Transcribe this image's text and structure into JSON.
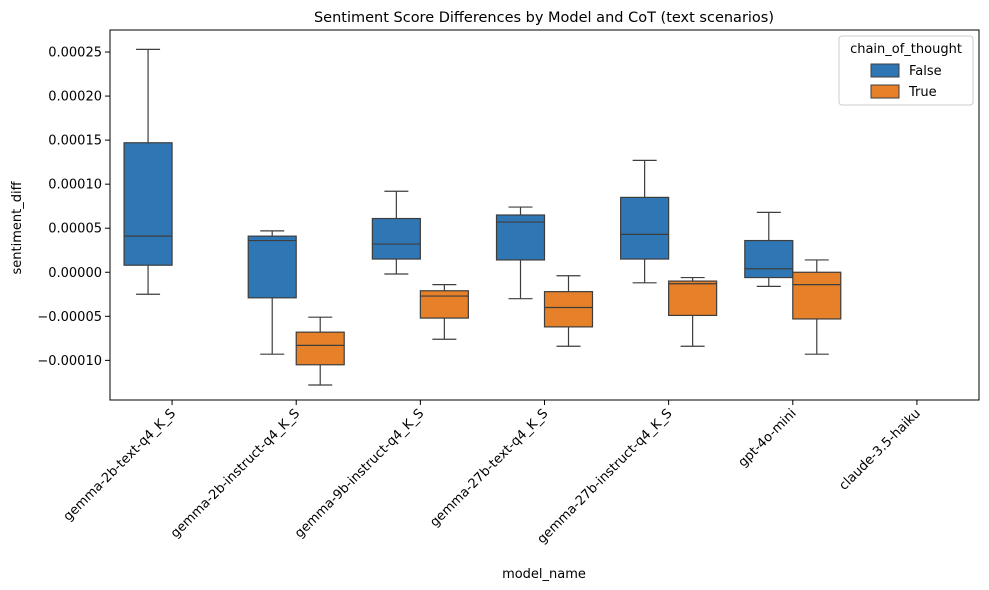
{
  "chart_data": {
    "type": "box",
    "title": "Sentiment Score Differences by Model and CoT (text scenarios)",
    "xlabel": "model_name",
    "ylabel": "sentiment_diff",
    "categories": [
      "gemma-2b-text-q4_K_S",
      "gemma-2b-instruct-q4_K_S",
      "gemma-9b-instruct-q4_K_S",
      "gemma-27b-text-q4_K_S",
      "gemma-27b-instruct-q4_K_S",
      "gpt-4o-mini",
      "claude-3.5-haiku"
    ],
    "y_ticks": [
      "0.00025",
      "0.00020",
      "0.00015",
      "0.00010",
      "0.00005",
      "0.00000",
      "−0.00005",
      "−0.00010"
    ],
    "y_tick_values": [
      0.00025,
      0.0002,
      0.00015,
      0.0001,
      5e-05,
      0.0,
      -5e-05,
      -0.0001
    ],
    "ylim": [
      -0.000145,
      0.000275
    ],
    "grid": false,
    "legend": {
      "title": "chain_of_thought",
      "placement": "top-right",
      "entries": [
        {
          "label": "False",
          "color": "#2f77b4"
        },
        {
          "label": "True",
          "color": "#e6812a"
        }
      ]
    },
    "series": [
      {
        "name": "False",
        "color": "#2f77b4",
        "boxes": [
          {
            "category": 0,
            "whislo": -2.5e-05,
            "q1": 8e-06,
            "med": 4.1e-05,
            "q3": 0.000147,
            "whishi": 0.000253
          },
          {
            "category": 1,
            "whislo": -9.3e-05,
            "q1": -2.9e-05,
            "med": 3.6e-05,
            "q3": 4.1e-05,
            "whishi": 4.7e-05
          },
          {
            "category": 2,
            "whislo": -2e-06,
            "q1": 1.5e-05,
            "med": 3.2e-05,
            "q3": 6.1e-05,
            "whishi": 9.2e-05
          },
          {
            "category": 3,
            "whislo": -3e-05,
            "q1": 1.4e-05,
            "med": 5.7e-05,
            "q3": 6.5e-05,
            "whishi": 7.4e-05
          },
          {
            "category": 4,
            "whislo": -1.2e-05,
            "q1": 1.5e-05,
            "med": 4.3e-05,
            "q3": 8.5e-05,
            "whishi": 0.000127
          },
          {
            "category": 5,
            "whislo": -1.6e-05,
            "q1": -6e-06,
            "med": 4e-06,
            "q3": 3.6e-05,
            "whishi": 6.8e-05
          }
        ]
      },
      {
        "name": "True",
        "color": "#e6812a",
        "boxes": [
          {
            "category": 1,
            "whislo": -0.000128,
            "q1": -0.000105,
            "med": -8.3e-05,
            "q3": -6.8e-05,
            "whishi": -5.1e-05
          },
          {
            "category": 2,
            "whislo": -7.6e-05,
            "q1": -5.2e-05,
            "med": -2.7e-05,
            "q3": -2.1e-05,
            "whishi": -1.4e-05
          },
          {
            "category": 3,
            "whislo": -8.4e-05,
            "q1": -6.2e-05,
            "med": -4e-05,
            "q3": -2.2e-05,
            "whishi": -4e-06
          },
          {
            "category": 4,
            "whislo": -8.4e-05,
            "q1": -4.9e-05,
            "med": -1.3e-05,
            "q3": -1e-05,
            "whishi": -6e-06
          },
          {
            "category": 5,
            "whislo": -9.3e-05,
            "q1": -5.3e-05,
            "med": -1.4e-05,
            "q3": 0.0,
            "whishi": 1.4e-05
          }
        ]
      }
    ]
  }
}
